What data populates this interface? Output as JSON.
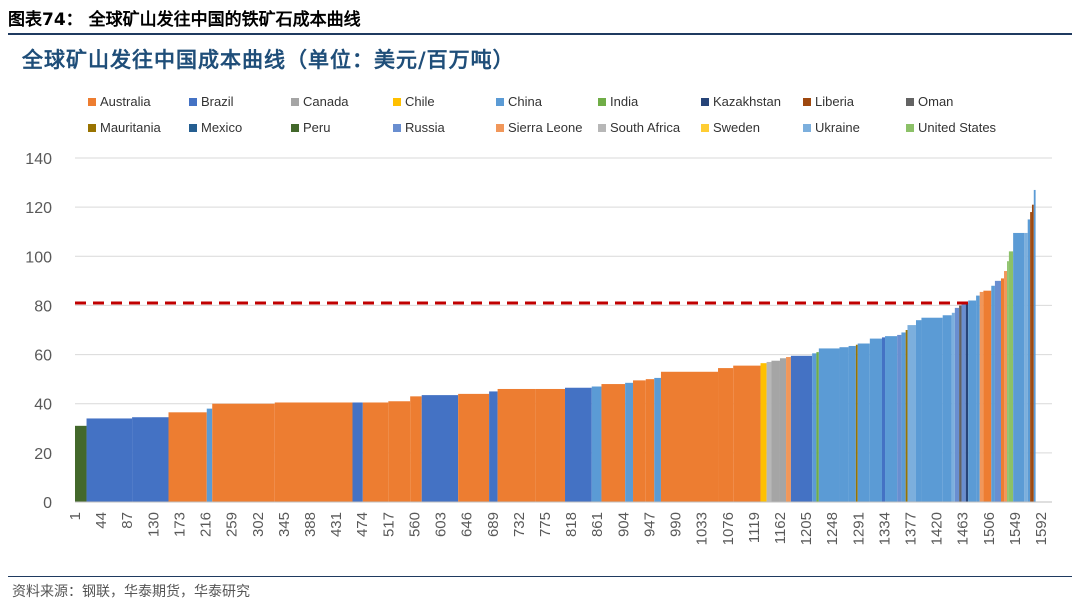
{
  "figure_caption": "图表74：  全球矿山发往中国的铁矿石成本曲线",
  "source_note": "资料来源：钢联，华泰期货，华泰研究",
  "colors": {
    "Australia": "#ed7d31",
    "Brazil": "#4472c4",
    "Canada": "#a5a5a5",
    "Chile": "#ffc000",
    "China": "#5b9bd5",
    "India": "#70ad47",
    "Kazakhstan": "#264478",
    "Liberia": "#9e480e",
    "Oman": "#636363",
    "Mauritania": "#997300",
    "Mexico": "#255e91",
    "Peru": "#43682b",
    "Russia": "#698ed0",
    "Sierra Leone": "#f1975a",
    "South Africa": "#b7b7b7",
    "Sweden": "#ffcd33",
    "Ukraine": "#7cafdd",
    "United States": "#8cc168",
    "reference_line": "#c00000",
    "axis": "#d9d9d9",
    "title": "#1f4e79"
  },
  "chart_data": {
    "type": "bar",
    "title": "全球矿山发往中国成本曲线（单位：美元/百万吨）",
    "xlabel": "",
    "ylabel": "",
    "ylim": [
      0,
      140
    ],
    "yticks": [
      0,
      20,
      40,
      60,
      80,
      100,
      120,
      140
    ],
    "xlim": [
      1,
      1610
    ],
    "xticks": [
      1,
      44,
      87,
      130,
      173,
      216,
      259,
      302,
      345,
      388,
      431,
      474,
      517,
      560,
      603,
      646,
      689,
      732,
      775,
      818,
      861,
      904,
      947,
      990,
      1033,
      1076,
      1119,
      1162,
      1205,
      1248,
      1291,
      1334,
      1377,
      1420,
      1463,
      1506,
      1549,
      1592
    ],
    "grid": "horizontal",
    "legend_position": "top",
    "legend": [
      "Australia",
      "Brazil",
      "Canada",
      "Chile",
      "China",
      "India",
      "Kazakhstan",
      "Liberia",
      "Oman",
      "Mauritania",
      "Mexico",
      "Peru",
      "Russia",
      "Sierra Leone",
      "South Africa",
      "Sweden",
      "Ukraine",
      "United States"
    ],
    "reference_line": {
      "y": 81,
      "style": "dashed"
    },
    "segments": [
      {
        "x0": 1,
        "x1": 20,
        "value": 31,
        "country": "Peru"
      },
      {
        "x0": 20,
        "x1": 95,
        "value": 34,
        "country": "Brazil"
      },
      {
        "x0": 95,
        "x1": 155,
        "value": 34.5,
        "country": "Brazil"
      },
      {
        "x0": 155,
        "x1": 218,
        "value": 36.5,
        "country": "Australia"
      },
      {
        "x0": 218,
        "x1": 227,
        "value": 38,
        "country": "China"
      },
      {
        "x0": 227,
        "x1": 330,
        "value": 40,
        "country": "Australia"
      },
      {
        "x0": 330,
        "x1": 458,
        "value": 40.5,
        "country": "Australia"
      },
      {
        "x0": 458,
        "x1": 475,
        "value": 40.5,
        "country": "Brazil"
      },
      {
        "x0": 475,
        "x1": 517,
        "value": 40.5,
        "country": "Australia"
      },
      {
        "x0": 517,
        "x1": 553,
        "value": 41,
        "country": "Australia"
      },
      {
        "x0": 553,
        "x1": 572,
        "value": 43,
        "country": "Australia"
      },
      {
        "x0": 572,
        "x1": 632,
        "value": 43.5,
        "country": "Brazil"
      },
      {
        "x0": 632,
        "x1": 683,
        "value": 44,
        "country": "Australia"
      },
      {
        "x0": 683,
        "x1": 697,
        "value": 45,
        "country": "Brazil"
      },
      {
        "x0": 697,
        "x1": 760,
        "value": 46,
        "country": "Australia"
      },
      {
        "x0": 760,
        "x1": 808,
        "value": 46,
        "country": "Australia"
      },
      {
        "x0": 808,
        "x1": 852,
        "value": 46.5,
        "country": "Brazil"
      },
      {
        "x0": 852,
        "x1": 868,
        "value": 47,
        "country": "China"
      },
      {
        "x0": 868,
        "x1": 907,
        "value": 48,
        "country": "Australia"
      },
      {
        "x0": 907,
        "x1": 920,
        "value": 48.5,
        "country": "China"
      },
      {
        "x0": 920,
        "x1": 941,
        "value": 49.5,
        "country": "Australia"
      },
      {
        "x0": 941,
        "x1": 955,
        "value": 50,
        "country": "Australia"
      },
      {
        "x0": 955,
        "x1": 966,
        "value": 50.5,
        "country": "China"
      },
      {
        "x0": 966,
        "x1": 1060,
        "value": 53,
        "country": "Australia"
      },
      {
        "x0": 1060,
        "x1": 1085,
        "value": 54.5,
        "country": "Australia"
      },
      {
        "x0": 1085,
        "x1": 1130,
        "value": 55.5,
        "country": "Australia"
      },
      {
        "x0": 1130,
        "x1": 1140,
        "value": 56.5,
        "country": "Chile"
      },
      {
        "x0": 1140,
        "x1": 1148,
        "value": 57,
        "country": "South Africa"
      },
      {
        "x0": 1148,
        "x1": 1162,
        "value": 57.5,
        "country": "Canada"
      },
      {
        "x0": 1162,
        "x1": 1172,
        "value": 58.5,
        "country": "Canada"
      },
      {
        "x0": 1172,
        "x1": 1180,
        "value": 59,
        "country": "Sierra Leone"
      },
      {
        "x0": 1180,
        "x1": 1215,
        "value": 59.5,
        "country": "Brazil"
      },
      {
        "x0": 1215,
        "x1": 1222,
        "value": 60.5,
        "country": "China"
      },
      {
        "x0": 1222,
        "x1": 1226,
        "value": 61,
        "country": "India"
      },
      {
        "x0": 1226,
        "x1": 1260,
        "value": 62.5,
        "country": "China"
      },
      {
        "x0": 1260,
        "x1": 1275,
        "value": 63,
        "country": "China"
      },
      {
        "x0": 1275,
        "x1": 1287,
        "value": 63.5,
        "country": "China"
      },
      {
        "x0": 1287,
        "x1": 1290,
        "value": 64,
        "country": "Mauritania"
      },
      {
        "x0": 1290,
        "x1": 1310,
        "value": 64.5,
        "country": "China"
      },
      {
        "x0": 1310,
        "x1": 1330,
        "value": 66.5,
        "country": "China"
      },
      {
        "x0": 1330,
        "x1": 1335,
        "value": 67,
        "country": "Brazil"
      },
      {
        "x0": 1335,
        "x1": 1355,
        "value": 67.5,
        "country": "China"
      },
      {
        "x0": 1355,
        "x1": 1362,
        "value": 68,
        "country": "Russia"
      },
      {
        "x0": 1362,
        "x1": 1369,
        "value": 69,
        "country": "China"
      },
      {
        "x0": 1369,
        "x1": 1372,
        "value": 70,
        "country": "Mauritania"
      },
      {
        "x0": 1372,
        "x1": 1386,
        "value": 72,
        "country": "Ukraine"
      },
      {
        "x0": 1386,
        "x1": 1395,
        "value": 74,
        "country": "China"
      },
      {
        "x0": 1395,
        "x1": 1430,
        "value": 75,
        "country": "China"
      },
      {
        "x0": 1430,
        "x1": 1445,
        "value": 76,
        "country": "China"
      },
      {
        "x0": 1445,
        "x1": 1450,
        "value": 77,
        "country": "Ukraine"
      },
      {
        "x0": 1450,
        "x1": 1457,
        "value": 79,
        "country": "Russia"
      },
      {
        "x0": 1457,
        "x1": 1461,
        "value": 80,
        "country": "Oman"
      },
      {
        "x0": 1461,
        "x1": 1468,
        "value": 80.5,
        "country": "Russia"
      },
      {
        "x0": 1468,
        "x1": 1472,
        "value": 81,
        "country": "Kazakhstan"
      },
      {
        "x0": 1472,
        "x1": 1485,
        "value": 82,
        "country": "China"
      },
      {
        "x0": 1485,
        "x1": 1491,
        "value": 84,
        "country": "China"
      },
      {
        "x0": 1491,
        "x1": 1497,
        "value": 85.5,
        "country": "Sierra Leone"
      },
      {
        "x0": 1497,
        "x1": 1510,
        "value": 86,
        "country": "Australia"
      },
      {
        "x0": 1510,
        "x1": 1516,
        "value": 88,
        "country": "China"
      },
      {
        "x0": 1516,
        "x1": 1526,
        "value": 90,
        "country": "Russia"
      },
      {
        "x0": 1526,
        "x1": 1531,
        "value": 91,
        "country": "Australia"
      },
      {
        "x0": 1531,
        "x1": 1536,
        "value": 94,
        "country": "Sierra Leone"
      },
      {
        "x0": 1536,
        "x1": 1539,
        "value": 98,
        "country": "United States"
      },
      {
        "x0": 1539,
        "x1": 1546,
        "value": 102,
        "country": "United States"
      },
      {
        "x0": 1546,
        "x1": 1564,
        "value": 109.5,
        "country": "China"
      },
      {
        "x0": 1564,
        "x1": 1570,
        "value": 109.5,
        "country": "Ukraine"
      },
      {
        "x0": 1570,
        "x1": 1574,
        "value": 115,
        "country": "China"
      },
      {
        "x0": 1574,
        "x1": 1577,
        "value": 118,
        "country": "Liberia"
      },
      {
        "x0": 1577,
        "x1": 1580,
        "value": 121,
        "country": "Liberia"
      },
      {
        "x0": 1580,
        "x1": 1583,
        "value": 127,
        "country": "China"
      }
    ]
  }
}
